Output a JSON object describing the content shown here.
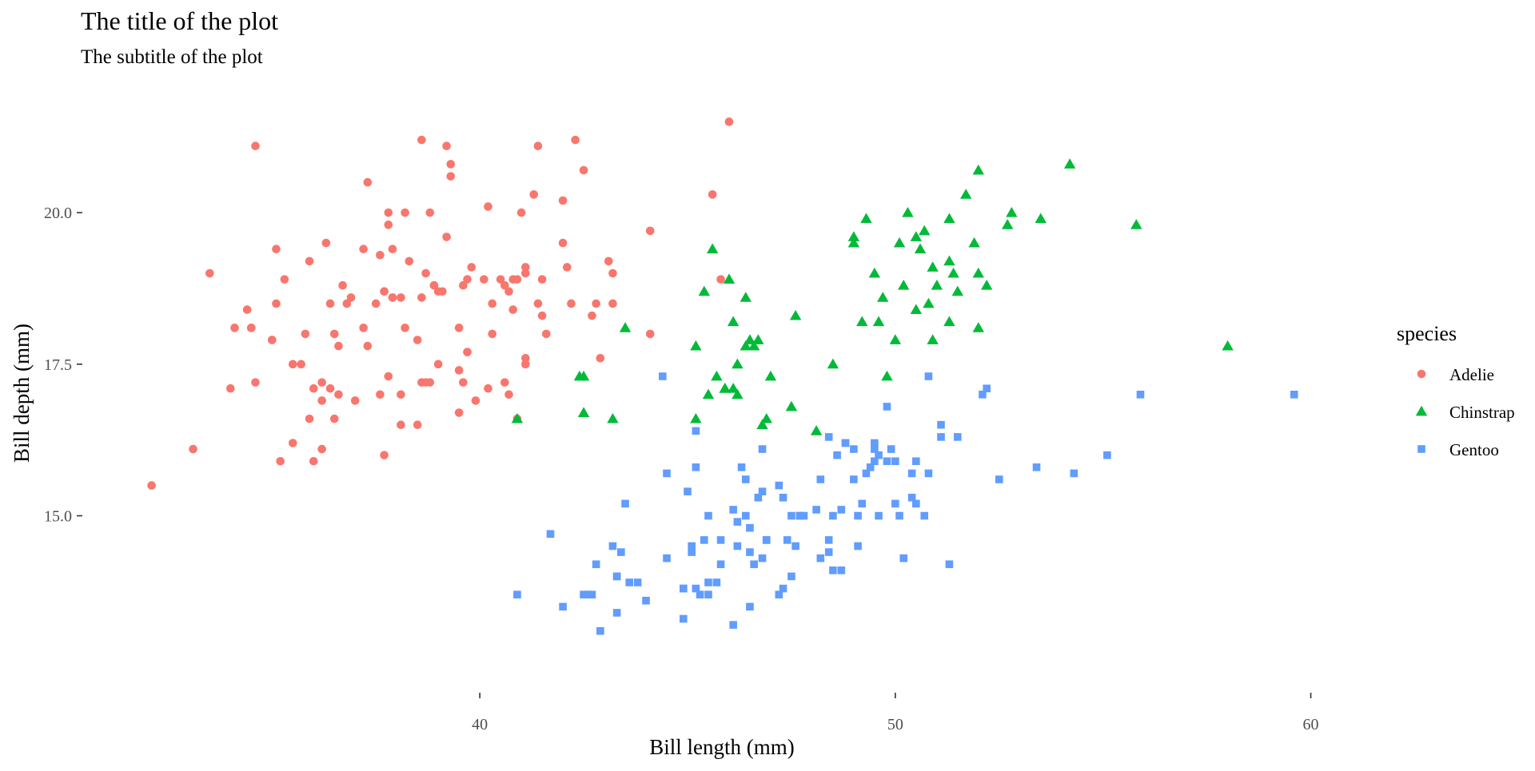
{
  "chart_data": {
    "type": "scatter",
    "title": "The title of the plot",
    "subtitle": "The subtitle of the plot",
    "xlabel": "Bill length (mm)",
    "ylabel": "Bill depth (mm)",
    "xlim": [
      31.3,
      65.3
    ],
    "ylim": [
      12.2,
      21.9
    ],
    "x_ticks": [
      40,
      50,
      60
    ],
    "x_tick_labels": [
      "40",
      "50",
      "60"
    ],
    "y_ticks": [
      15.0,
      17.5,
      20.0
    ],
    "y_tick_labels": [
      "15.0",
      "17.5",
      "20.0"
    ],
    "grid": false,
    "legend": {
      "title": "species",
      "placement": "right"
    },
    "series": [
      {
        "name": "Adelie",
        "color": "#F8766D",
        "shape": "circle",
        "points": [
          [
            32.1,
            15.5
          ],
          [
            33.1,
            16.1
          ],
          [
            33.5,
            19.0
          ],
          [
            34.0,
            17.1
          ],
          [
            34.1,
            18.1
          ],
          [
            34.4,
            18.4
          ],
          [
            34.5,
            18.1
          ],
          [
            34.6,
            21.1
          ],
          [
            34.6,
            17.2
          ],
          [
            35.0,
            17.9
          ],
          [
            35.1,
            19.4
          ],
          [
            35.2,
            15.9
          ],
          [
            35.3,
            18.9
          ],
          [
            35.5,
            16.2
          ],
          [
            35.5,
            17.5
          ],
          [
            35.7,
            17.5
          ],
          [
            35.8,
            18.0
          ],
          [
            35.9,
            16.6
          ],
          [
            36.0,
            17.1
          ],
          [
            36.2,
            16.9
          ],
          [
            36.2,
            17.2
          ],
          [
            36.4,
            17.1
          ],
          [
            36.5,
            18.0
          ],
          [
            36.6,
            17.8
          ],
          [
            36.7,
            18.8
          ],
          [
            36.8,
            18.5
          ],
          [
            36.9,
            18.6
          ],
          [
            37.0,
            16.9
          ],
          [
            37.2,
            18.1
          ],
          [
            37.3,
            17.8
          ],
          [
            37.5,
            18.5
          ],
          [
            37.6,
            19.3
          ],
          [
            37.7,
            18.7
          ],
          [
            37.8,
            20.0
          ],
          [
            37.9,
            18.6
          ],
          [
            38.1,
            18.6
          ],
          [
            38.2,
            18.1
          ],
          [
            38.3,
            19.2
          ],
          [
            38.5,
            17.9
          ],
          [
            38.6,
            21.2
          ],
          [
            38.7,
            19.0
          ],
          [
            38.8,
            20.0
          ],
          [
            38.9,
            18.8
          ],
          [
            39.0,
            17.5
          ],
          [
            39.1,
            18.7
          ],
          [
            39.2,
            19.6
          ],
          [
            39.3,
            20.6
          ],
          [
            39.5,
            17.4
          ],
          [
            39.6,
            18.8
          ],
          [
            39.7,
            18.9
          ],
          [
            39.8,
            19.1
          ],
          [
            40.1,
            18.9
          ],
          [
            40.2,
            17.1
          ],
          [
            40.3,
            18.0
          ],
          [
            40.5,
            18.9
          ],
          [
            40.6,
            17.2
          ],
          [
            40.7,
            17.0
          ],
          [
            40.8,
            18.4
          ],
          [
            40.9,
            18.9
          ],
          [
            41.1,
            19.0
          ],
          [
            41.1,
            17.5
          ],
          [
            41.3,
            20.3
          ],
          [
            41.4,
            18.5
          ],
          [
            41.5,
            18.3
          ],
          [
            41.6,
            18.0
          ],
          [
            42.0,
            19.5
          ],
          [
            42.1,
            19.1
          ],
          [
            42.2,
            18.5
          ],
          [
            42.3,
            21.2
          ],
          [
            42.5,
            20.7
          ],
          [
            42.7,
            18.3
          ],
          [
            42.8,
            18.5
          ],
          [
            42.9,
            17.6
          ],
          [
            43.1,
            19.2
          ],
          [
            43.2,
            19.0
          ],
          [
            44.1,
            19.7
          ],
          [
            44.1,
            18.0
          ],
          [
            45.6,
            20.3
          ],
          [
            45.8,
            18.9
          ],
          [
            46.0,
            21.5
          ],
          [
            37.7,
            16.0
          ],
          [
            38.1,
            17.0
          ],
          [
            39.5,
            16.7
          ],
          [
            36.0,
            15.9
          ],
          [
            41.1,
            17.6
          ],
          [
            40.2,
            20.1
          ],
          [
            37.8,
            17.3
          ],
          [
            38.8,
            17.2
          ],
          [
            39.7,
            17.7
          ],
          [
            37.3,
            20.5
          ],
          [
            36.6,
            17.0
          ],
          [
            38.6,
            17.2
          ],
          [
            41.1,
            19.1
          ],
          [
            37.9,
            18.6
          ],
          [
            39.6,
            17.2
          ],
          [
            34.5,
            18.1
          ],
          [
            36.3,
            19.5
          ],
          [
            38.1,
            16.5
          ],
          [
            35.9,
            19.2
          ],
          [
            40.9,
            16.6
          ],
          [
            42.0,
            20.2
          ],
          [
            37.6,
            17.0
          ],
          [
            38.9,
            18.8
          ],
          [
            39.2,
            21.1
          ],
          [
            36.5,
            16.6
          ],
          [
            40.6,
            18.8
          ],
          [
            37.2,
            19.4
          ],
          [
            39.0,
            18.7
          ],
          [
            36.4,
            18.5
          ],
          [
            38.2,
            20.0
          ],
          [
            40.8,
            18.9
          ],
          [
            39.3,
            20.8
          ],
          [
            41.0,
            20.0
          ],
          [
            38.7,
            17.2
          ],
          [
            37.8,
            19.8
          ],
          [
            40.3,
            18.5
          ],
          [
            39.9,
            16.9
          ],
          [
            37.9,
            19.4
          ],
          [
            43.2,
            18.5
          ],
          [
            35.1,
            18.5
          ],
          [
            41.4,
            21.1
          ],
          [
            39.7,
            17.7
          ],
          [
            37.7,
            18.7
          ],
          [
            40.7,
            18.7
          ],
          [
            38.5,
            16.5
          ],
          [
            36.2,
            16.1
          ],
          [
            39.5,
            18.1
          ],
          [
            35.0,
            17.9
          ],
          [
            38.6,
            18.6
          ],
          [
            41.5,
            18.9
          ]
        ]
      },
      {
        "name": "Chinstrap",
        "color": "#00BA38",
        "shape": "triangle",
        "points": [
          [
            40.9,
            16.6
          ],
          [
            42.4,
            17.3
          ],
          [
            42.5,
            16.7
          ],
          [
            42.5,
            17.3
          ],
          [
            43.2,
            16.6
          ],
          [
            43.5,
            18.1
          ],
          [
            45.2,
            16.6
          ],
          [
            45.2,
            17.8
          ],
          [
            45.4,
            18.7
          ],
          [
            45.5,
            17.0
          ],
          [
            45.6,
            19.4
          ],
          [
            45.7,
            17.3
          ],
          [
            45.9,
            17.1
          ],
          [
            46.0,
            18.9
          ],
          [
            46.1,
            18.2
          ],
          [
            46.2,
            17.5
          ],
          [
            46.4,
            17.8
          ],
          [
            46.5,
            17.9
          ],
          [
            46.6,
            17.8
          ],
          [
            46.7,
            17.9
          ],
          [
            46.8,
            16.5
          ],
          [
            46.9,
            16.6
          ],
          [
            47.0,
            17.3
          ],
          [
            47.5,
            16.8
          ],
          [
            47.6,
            18.3
          ],
          [
            48.1,
            16.4
          ],
          [
            48.5,
            17.5
          ],
          [
            49.0,
            19.5
          ],
          [
            49.0,
            19.6
          ],
          [
            49.2,
            18.2
          ],
          [
            49.3,
            19.9
          ],
          [
            49.6,
            18.2
          ],
          [
            49.8,
            17.3
          ],
          [
            50.1,
            19.5
          ],
          [
            50.2,
            18.8
          ],
          [
            50.3,
            20.0
          ],
          [
            50.5,
            19.6
          ],
          [
            50.6,
            19.4
          ],
          [
            50.7,
            19.7
          ],
          [
            50.8,
            18.5
          ],
          [
            50.9,
            17.9
          ],
          [
            51.0,
            18.8
          ],
          [
            51.3,
            18.2
          ],
          [
            51.3,
            19.9
          ],
          [
            51.4,
            19.0
          ],
          [
            51.5,
            18.7
          ],
          [
            51.7,
            20.3
          ],
          [
            51.9,
            19.5
          ],
          [
            52.0,
            18.1
          ],
          [
            52.0,
            20.7
          ],
          [
            52.2,
            18.8
          ],
          [
            52.7,
            19.8
          ],
          [
            52.8,
            20.0
          ],
          [
            53.5,
            19.9
          ],
          [
            54.2,
            20.8
          ],
          [
            55.8,
            19.8
          ],
          [
            58.0,
            17.8
          ],
          [
            46.4,
            18.6
          ],
          [
            45.9,
            17.1
          ],
          [
            49.5,
            19.0
          ],
          [
            50.5,
            18.4
          ],
          [
            49.7,
            18.6
          ],
          [
            50.9,
            19.1
          ],
          [
            51.3,
            19.2
          ],
          [
            50.0,
            17.9
          ],
          [
            46.1,
            17.1
          ],
          [
            46.2,
            17.0
          ],
          [
            52.0,
            19.0
          ]
        ]
      },
      {
        "name": "Gentoo",
        "color": "#619CFF",
        "shape": "square",
        "points": [
          [
            40.9,
            13.7
          ],
          [
            41.7,
            14.7
          ],
          [
            42.0,
            13.5
          ],
          [
            42.5,
            13.7
          ],
          [
            42.6,
            13.7
          ],
          [
            42.7,
            13.7
          ],
          [
            42.8,
            14.2
          ],
          [
            42.9,
            13.1
          ],
          [
            43.2,
            14.5
          ],
          [
            43.3,
            13.4
          ],
          [
            43.3,
            14.0
          ],
          [
            43.4,
            14.4
          ],
          [
            43.5,
            15.2
          ],
          [
            43.6,
            13.9
          ],
          [
            43.8,
            13.9
          ],
          [
            44.0,
            13.6
          ],
          [
            44.4,
            17.3
          ],
          [
            44.5,
            14.3
          ],
          [
            44.5,
            15.7
          ],
          [
            44.9,
            13.3
          ],
          [
            44.9,
            13.8
          ],
          [
            45.0,
            15.4
          ],
          [
            45.1,
            14.5
          ],
          [
            45.1,
            14.4
          ],
          [
            45.2,
            13.8
          ],
          [
            45.2,
            16.4
          ],
          [
            45.2,
            15.8
          ],
          [
            45.3,
            13.7
          ],
          [
            45.4,
            14.6
          ],
          [
            45.5,
            13.7
          ],
          [
            45.5,
            15.0
          ],
          [
            45.7,
            13.9
          ],
          [
            45.8,
            14.2
          ],
          [
            46.1,
            13.2
          ],
          [
            46.1,
            15.1
          ],
          [
            46.2,
            14.5
          ],
          [
            46.2,
            14.9
          ],
          [
            46.3,
            15.8
          ],
          [
            46.4,
            15.0
          ],
          [
            46.5,
            13.5
          ],
          [
            46.5,
            14.4
          ],
          [
            46.5,
            14.8
          ],
          [
            46.6,
            14.2
          ],
          [
            46.7,
            15.3
          ],
          [
            46.8,
            14.3
          ],
          [
            46.8,
            15.4
          ],
          [
            46.8,
            16.1
          ],
          [
            46.9,
            14.6
          ],
          [
            47.2,
            13.7
          ],
          [
            47.2,
            15.5
          ],
          [
            47.3,
            13.8
          ],
          [
            47.4,
            14.6
          ],
          [
            47.5,
            14.0
          ],
          [
            47.5,
            15.0
          ],
          [
            47.6,
            14.5
          ],
          [
            47.7,
            15.0
          ],
          [
            47.8,
            15.0
          ],
          [
            48.1,
            15.1
          ],
          [
            48.2,
            14.3
          ],
          [
            48.2,
            15.6
          ],
          [
            48.4,
            14.4
          ],
          [
            48.4,
            16.3
          ],
          [
            48.5,
            14.1
          ],
          [
            48.5,
            15.0
          ],
          [
            48.6,
            16.0
          ],
          [
            48.7,
            14.1
          ],
          [
            48.7,
            15.1
          ],
          [
            48.8,
            16.2
          ],
          [
            49.0,
            16.1
          ],
          [
            49.1,
            14.5
          ],
          [
            49.1,
            15.0
          ],
          [
            49.2,
            15.2
          ],
          [
            49.3,
            15.7
          ],
          [
            49.4,
            15.8
          ],
          [
            49.5,
            15.9
          ],
          [
            49.5,
            16.1
          ],
          [
            49.6,
            15.0
          ],
          [
            49.6,
            16.0
          ],
          [
            49.8,
            15.9
          ],
          [
            49.8,
            16.8
          ],
          [
            49.9,
            16.1
          ],
          [
            50.0,
            15.2
          ],
          [
            50.0,
            15.9
          ],
          [
            50.1,
            15.0
          ],
          [
            50.2,
            14.3
          ],
          [
            50.4,
            15.3
          ],
          [
            50.4,
            15.7
          ],
          [
            50.5,
            15.2
          ],
          [
            50.5,
            15.9
          ],
          [
            50.7,
            15.0
          ],
          [
            50.8,
            15.7
          ],
          [
            50.8,
            17.3
          ],
          [
            51.1,
            16.3
          ],
          [
            51.1,
            16.5
          ],
          [
            51.3,
            14.2
          ],
          [
            51.5,
            16.3
          ],
          [
            52.1,
            17.0
          ],
          [
            52.2,
            17.1
          ],
          [
            52.5,
            15.6
          ],
          [
            53.4,
            15.8
          ],
          [
            54.3,
            15.7
          ],
          [
            55.1,
            16.0
          ],
          [
            55.9,
            17.0
          ],
          [
            59.6,
            17.0
          ],
          [
            45.5,
            13.9
          ],
          [
            46.4,
            15.6
          ],
          [
            47.3,
            15.3
          ],
          [
            48.8,
            16.2
          ],
          [
            49.5,
            16.2
          ],
          [
            43.3,
            14.0
          ],
          [
            46.9,
            14.6
          ],
          [
            44.9,
            13.8
          ],
          [
            45.8,
            14.6
          ],
          [
            48.4,
            14.6
          ],
          [
            47.7,
            15.0
          ],
          [
            49.0,
            15.6
          ]
        ]
      }
    ]
  }
}
